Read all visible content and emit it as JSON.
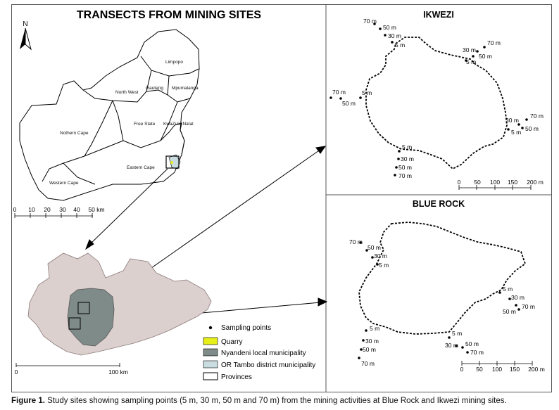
{
  "main_title": "TRANSECTS FROM MINING SITES",
  "north_label": "N",
  "provinces": {
    "limpopo": "Limpopo",
    "north_west": "North West",
    "gauteng": "Gauteng",
    "mpumalanga": "Mpumalanga",
    "free_state": "Free State",
    "kwazulu_natal": "KwaZulu-Natal",
    "northern_cape": "Nothern Cape",
    "eastern_cape": "Eastern Cape",
    "western_cape": "Western Cape"
  },
  "scale_national": {
    "ticks": [
      "0",
      "10",
      "20",
      "30",
      "40",
      "50 km"
    ]
  },
  "scale_district": {
    "ticks": [
      "0",
      "100 km"
    ]
  },
  "legend": {
    "items": [
      {
        "label": "Sampling points",
        "symbol": "dot"
      },
      {
        "label": "Quarry",
        "color": "#e6ef1a"
      },
      {
        "label": "Nyandeni local municipality",
        "color": "#7f8b88"
      },
      {
        "label": "OR Tambo district municipality",
        "color": "#c9dde0"
      },
      {
        "label": "Provinces",
        "color": "#ffffff"
      }
    ]
  },
  "ikwezi": {
    "title": "IKWEZI",
    "points": [
      {
        "label": "70 m"
      },
      {
        "label": "50 m"
      },
      {
        "label": "30 m"
      },
      {
        "label": "5 m"
      },
      {
        "label": "70 m"
      },
      {
        "label": "30 m"
      },
      {
        "label": "50 m"
      },
      {
        "label": "5 m"
      },
      {
        "label": "70 m"
      },
      {
        "label": "50 m"
      },
      {
        "label": "5 m"
      },
      {
        "label": "70 m"
      },
      {
        "label": "30 m"
      },
      {
        "label": "50 m"
      },
      {
        "label": "5 m"
      },
      {
        "label": "5 m"
      },
      {
        "label": "30 m"
      },
      {
        "label": "50 m"
      },
      {
        "label": "70 m"
      }
    ],
    "scale_ticks": [
      "0",
      "50",
      "100",
      "150",
      "200 m"
    ]
  },
  "blue_rock": {
    "title": "BLUE ROCK",
    "points": [
      {
        "label": "70 m"
      },
      {
        "label": "50 m"
      },
      {
        "label": "30 m"
      },
      {
        "label": "5 m"
      },
      {
        "label": "5 m"
      },
      {
        "label": "30 m"
      },
      {
        "label": "70 m"
      },
      {
        "label": "50 m"
      },
      {
        "label": "5 m"
      },
      {
        "label": "30 m"
      },
      {
        "label": "50 m"
      },
      {
        "label": "70 m"
      },
      {
        "label": "5 m"
      },
      {
        "label": "30 m"
      },
      {
        "label": "50 m"
      },
      {
        "label": "70 m"
      }
    ],
    "scale_ticks": [
      "0",
      "50",
      "100",
      "150",
      "200 m"
    ]
  },
  "caption": {
    "label": "Figure 1.",
    "text": " Study sites showing sampling points (5 m, 30 m, 50 m and 70 m) from the mining activities at Blue Rock and Ikwezi mining sites."
  },
  "colors": {
    "district_fill": "#dcd0cf",
    "nyandeni_fill": "#7f8b88",
    "quarry": "#e6ef1a",
    "boundary": "#000000"
  }
}
